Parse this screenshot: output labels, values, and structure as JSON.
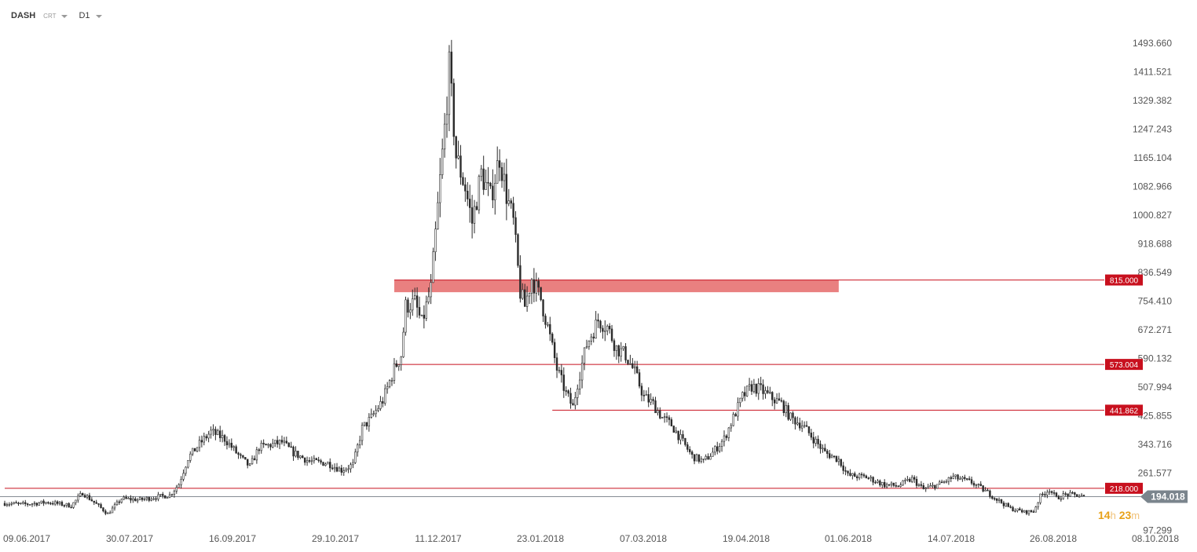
{
  "toolbar": {
    "symbol": "DASH",
    "type": "CRT",
    "timeframe": "D1"
  },
  "countdown": {
    "hours": "14",
    "h_unit": "h",
    "minutes": "23",
    "m_unit": "m"
  },
  "colors": {
    "candle": "#2b2b2b",
    "level_line": "#c8101e",
    "level_tag": "#c8101e",
    "zone": "#e98080",
    "price_line": "#5c6670",
    "price_tag": "#7b858d",
    "axis_text": "#555555"
  },
  "chart_data": {
    "type": "candlestick",
    "title": "",
    "interval": "D1",
    "x_ticks": [
      "09.06.2017",
      "30.07.2017",
      "16.09.2017",
      "29.10.2017",
      "11.12.2017",
      "23.01.2018",
      "07.03.2018",
      "19.04.2018",
      "01.06.2018",
      "14.07.2018",
      "26.08.2018",
      "08.10.2018"
    ],
    "y_ticks": [
      "1493.660",
      "1411.521",
      "1329.382",
      "1247.243",
      "1165.104",
      "1082.966",
      "1000.827",
      "918.688",
      "836.549",
      "754.410",
      "672.271",
      "590.132",
      "507.994",
      "425.855",
      "343.716",
      "261.577",
      "97.299"
    ],
    "ylim": [
      70,
      1530
    ],
    "current_price": {
      "label": "194.018",
      "value": 194.018
    },
    "levels": [
      {
        "label": "815.000",
        "value": 815,
        "from_date": "2017-11-18"
      },
      {
        "label": "573.004",
        "value": 573.004,
        "from_date": "2017-11-18"
      },
      {
        "label": "441.862",
        "value": 441.862,
        "from_date": "2018-01-26"
      },
      {
        "label": "218.000",
        "value": 218,
        "from_date": "2017-06-01"
      }
    ],
    "zone": {
      "from_date": "2017-11-18",
      "to_date": "2018-05-31",
      "low": 780,
      "high": 815
    },
    "close_path": [
      [
        "2017-06-01",
        175
      ],
      [
        "2017-06-09",
        172
      ],
      [
        "2017-06-20",
        178
      ],
      [
        "2017-06-30",
        168
      ],
      [
        "2017-07-05",
        205
      ],
      [
        "2017-07-16",
        145
      ],
      [
        "2017-07-22",
        188
      ],
      [
        "2017-07-30",
        185
      ],
      [
        "2017-08-05",
        192
      ],
      [
        "2017-08-12",
        198
      ],
      [
        "2017-08-16",
        230
      ],
      [
        "2017-08-20",
        305
      ],
      [
        "2017-08-25",
        345
      ],
      [
        "2017-08-30",
        380
      ],
      [
        "2017-09-05",
        360
      ],
      [
        "2017-09-12",
        305
      ],
      [
        "2017-09-16",
        280
      ],
      [
        "2017-09-20",
        335
      ],
      [
        "2017-09-30",
        350
      ],
      [
        "2017-10-05",
        320
      ],
      [
        "2017-10-12",
        295
      ],
      [
        "2017-10-20",
        290
      ],
      [
        "2017-10-26",
        270
      ],
      [
        "2017-10-31",
        285
      ],
      [
        "2017-11-04",
        390
      ],
      [
        "2017-11-08",
        420
      ],
      [
        "2017-11-13",
        470
      ],
      [
        "2017-11-18",
        560
      ],
      [
        "2017-11-21",
        600
      ],
      [
        "2017-11-23",
        740
      ],
      [
        "2017-11-27",
        750
      ],
      [
        "2017-11-30",
        690
      ],
      [
        "2017-12-04",
        790
      ],
      [
        "2017-12-08",
        1100
      ],
      [
        "2017-12-10",
        1250
      ],
      [
        "2017-12-12",
        1420
      ],
      [
        "2017-12-15",
        1170
      ],
      [
        "2017-12-19",
        1080
      ],
      [
        "2017-12-22",
        980
      ],
      [
        "2017-12-26",
        1120
      ],
      [
        "2017-12-30",
        1050
      ],
      [
        "2018-01-03",
        1170
      ],
      [
        "2018-01-06",
        1060
      ],
      [
        "2018-01-09",
        980
      ],
      [
        "2018-01-12",
        780
      ],
      [
        "2018-01-14",
        740
      ],
      [
        "2018-01-17",
        820
      ],
      [
        "2018-01-21",
        760
      ],
      [
        "2018-01-24",
        680
      ],
      [
        "2018-01-28",
        560
      ],
      [
        "2018-02-01",
        490
      ],
      [
        "2018-02-04",
        450
      ],
      [
        "2018-02-06",
        520
      ],
      [
        "2018-02-10",
        630
      ],
      [
        "2018-02-15",
        700
      ],
      [
        "2018-02-19",
        680
      ],
      [
        "2018-02-23",
        620
      ],
      [
        "2018-02-27",
        600
      ],
      [
        "2018-03-03",
        550
      ],
      [
        "2018-03-07",
        480
      ],
      [
        "2018-03-11",
        460
      ],
      [
        "2018-03-15",
        420
      ],
      [
        "2018-03-19",
        400
      ],
      [
        "2018-03-23",
        360
      ],
      [
        "2018-03-28",
        310
      ],
      [
        "2018-04-02",
        295
      ],
      [
        "2018-04-06",
        320
      ],
      [
        "2018-04-11",
        360
      ],
      [
        "2018-04-15",
        420
      ],
      [
        "2018-04-19",
        480
      ],
      [
        "2018-04-23",
        510
      ],
      [
        "2018-04-27",
        500
      ],
      [
        "2018-05-01",
        480
      ],
      [
        "2018-05-06",
        460
      ],
      [
        "2018-05-10",
        420
      ],
      [
        "2018-05-15",
        400
      ],
      [
        "2018-05-20",
        360
      ],
      [
        "2018-05-25",
        320
      ],
      [
        "2018-05-31",
        300
      ],
      [
        "2018-06-04",
        255
      ],
      [
        "2018-06-12",
        250
      ],
      [
        "2018-06-20",
        228
      ],
      [
        "2018-06-26",
        225
      ],
      [
        "2018-07-02",
        245
      ],
      [
        "2018-07-07",
        215
      ],
      [
        "2018-07-14",
        230
      ],
      [
        "2018-07-20",
        250
      ],
      [
        "2018-07-28",
        235
      ],
      [
        "2018-08-03",
        210
      ],
      [
        "2018-08-09",
        182
      ],
      [
        "2018-08-14",
        160
      ],
      [
        "2018-08-20",
        150
      ],
      [
        "2018-08-24",
        152
      ],
      [
        "2018-08-27",
        195
      ],
      [
        "2018-08-31",
        215
      ],
      [
        "2018-09-03",
        190
      ],
      [
        "2018-09-07",
        200
      ],
      [
        "2018-09-12",
        198
      ],
      [
        "2018-09-15",
        194
      ]
    ]
  }
}
